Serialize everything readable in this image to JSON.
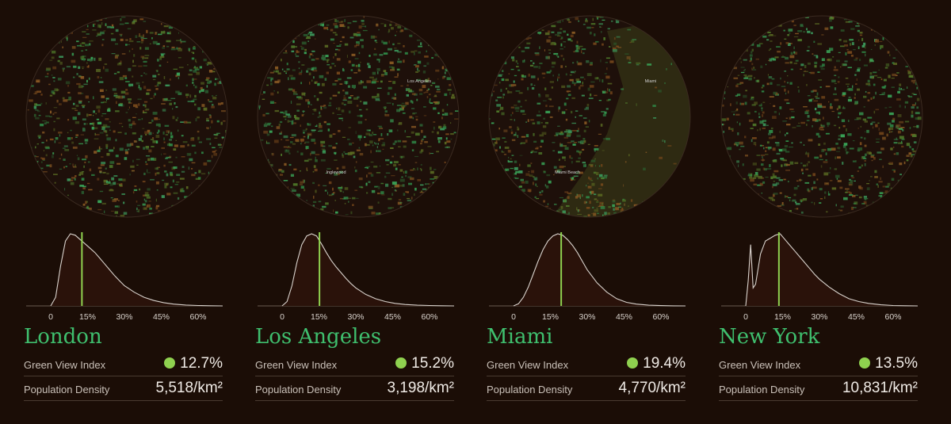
{
  "axis_ticks": [
    "0",
    "15%",
    "30%",
    "45%",
    "60%"
  ],
  "colors": {
    "background": "#1b0d06",
    "accent": "#3fbf6e",
    "marker": "#8fd14f",
    "curve": "#d9d3cd",
    "fill": "#2a120a"
  },
  "cities": [
    {
      "name": "London",
      "gvi_label": "Green View Index",
      "gvi_value": "12.7%",
      "density_label": "Population Density",
      "density_value": "5,518/km²",
      "map_labels": [],
      "water": null,
      "chart_data": {
        "type": "area",
        "title": "London",
        "x": [
          0,
          2,
          4,
          6,
          8,
          10,
          12,
          14,
          16,
          18,
          20,
          22,
          24,
          26,
          28,
          30,
          34,
          38,
          42,
          46,
          50,
          55,
          60,
          65,
          70
        ],
        "y": [
          0,
          0.12,
          0.55,
          0.9,
          1.0,
          0.98,
          0.92,
          0.86,
          0.8,
          0.74,
          0.66,
          0.58,
          0.5,
          0.42,
          0.35,
          0.28,
          0.19,
          0.12,
          0.075,
          0.045,
          0.025,
          0.012,
          0.006,
          0.002,
          0
        ],
        "marker": 12.7,
        "xlim": [
          0,
          70
        ],
        "xticks": [
          0,
          15,
          30,
          45,
          60
        ]
      }
    },
    {
      "name": "Los Angeles",
      "gvi_label": "Green View Index",
      "gvi_value": "15.2%",
      "density_label": "Population Density",
      "density_value": "3,198/km²",
      "map_labels": [
        "Los Angeles",
        "Inglewood"
      ],
      "water": null,
      "chart_data": {
        "type": "area",
        "title": "Los Angeles",
        "x": [
          0,
          2,
          4,
          6,
          8,
          10,
          12,
          14,
          16,
          18,
          20,
          22,
          24,
          26,
          28,
          30,
          34,
          38,
          42,
          46,
          50,
          55,
          60,
          65,
          70
        ],
        "y": [
          0,
          0.06,
          0.28,
          0.6,
          0.85,
          0.97,
          1.0,
          0.97,
          0.86,
          0.74,
          0.63,
          0.54,
          0.46,
          0.38,
          0.31,
          0.25,
          0.16,
          0.1,
          0.06,
          0.035,
          0.02,
          0.01,
          0.005,
          0.002,
          0
        ],
        "marker": 15.2,
        "xlim": [
          0,
          70
        ],
        "xticks": [
          0,
          15,
          30,
          45,
          60
        ]
      }
    },
    {
      "name": "Miami",
      "gvi_label": "Green View Index",
      "gvi_value": "19.4%",
      "density_label": "Population Density",
      "density_value": "4,770/km²",
      "map_labels": [
        "Miami",
        "Miami Beach"
      ],
      "water": "#2e2a12",
      "chart_data": {
        "type": "area",
        "title": "Miami",
        "x": [
          0,
          2,
          4,
          6,
          8,
          10,
          12,
          14,
          16,
          18,
          20,
          22,
          24,
          26,
          28,
          30,
          34,
          38,
          42,
          46,
          50,
          55,
          60,
          65,
          70
        ],
        "y": [
          0,
          0.03,
          0.12,
          0.26,
          0.44,
          0.62,
          0.78,
          0.9,
          0.97,
          1.0,
          0.98,
          0.92,
          0.84,
          0.74,
          0.62,
          0.5,
          0.32,
          0.19,
          0.1,
          0.05,
          0.025,
          0.01,
          0.004,
          0.001,
          0
        ],
        "marker": 19.4,
        "xlim": [
          0,
          70
        ],
        "xticks": [
          0,
          15,
          30,
          45,
          60
        ]
      }
    },
    {
      "name": "New York",
      "gvi_label": "Green View Index",
      "gvi_value": "13.5%",
      "density_label": "Population Density",
      "density_value": "10,831/km²",
      "map_labels": [],
      "water": null,
      "chart_data": {
        "type": "area",
        "title": "New York",
        "x": [
          0,
          1,
          2,
          3,
          4,
          6,
          8,
          10,
          12,
          14,
          16,
          18,
          20,
          22,
          24,
          26,
          28,
          30,
          34,
          38,
          42,
          46,
          50,
          55,
          60,
          65,
          70
        ],
        "y": [
          0,
          0.35,
          0.85,
          0.25,
          0.3,
          0.72,
          0.9,
          0.94,
          0.98,
          1.0,
          0.92,
          0.84,
          0.76,
          0.68,
          0.6,
          0.52,
          0.44,
          0.37,
          0.26,
          0.17,
          0.1,
          0.06,
          0.035,
          0.015,
          0.006,
          0.002,
          0
        ],
        "marker": 13.5,
        "xlim": [
          0,
          70
        ],
        "xticks": [
          0,
          15,
          30,
          45,
          60
        ]
      }
    }
  ]
}
